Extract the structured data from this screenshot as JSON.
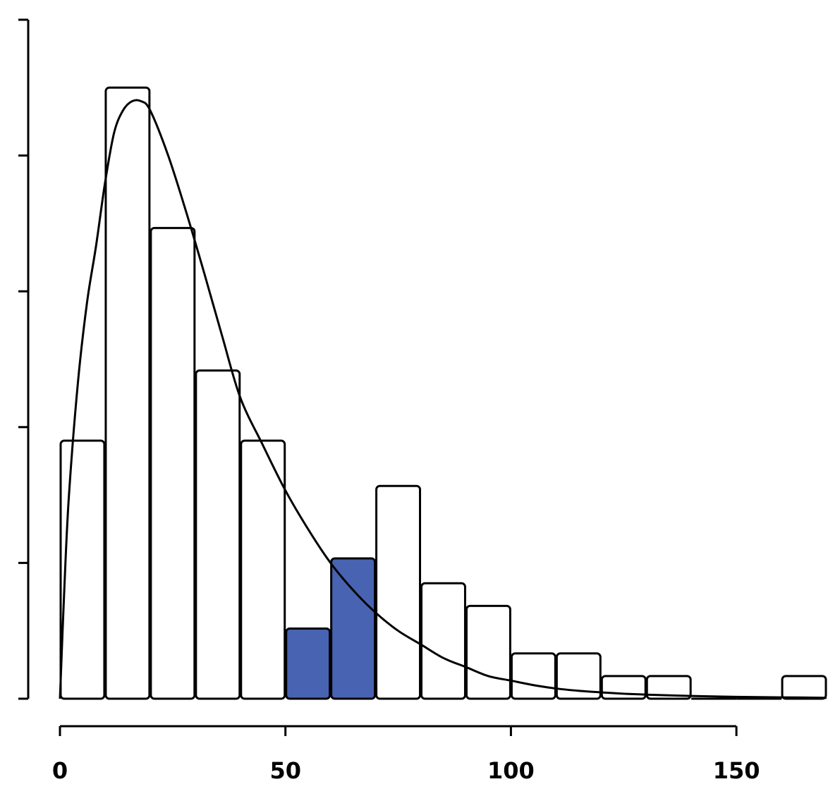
{
  "chart_data": {
    "type": "bar",
    "bin_width": 10,
    "bins": [
      {
        "x0": 0,
        "x1": 10,
        "value": 114,
        "highlighted": false
      },
      {
        "x0": 10,
        "x1": 20,
        "value": 270,
        "highlighted": false
      },
      {
        "x0": 20,
        "x1": 30,
        "value": 208,
        "highlighted": false
      },
      {
        "x0": 30,
        "x1": 40,
        "value": 145,
        "highlighted": false
      },
      {
        "x0": 40,
        "x1": 50,
        "value": 114,
        "highlighted": false
      },
      {
        "x0": 50,
        "x1": 60,
        "value": 31,
        "highlighted": true
      },
      {
        "x0": 60,
        "x1": 70,
        "value": 62,
        "highlighted": true
      },
      {
        "x0": 70,
        "x1": 80,
        "value": 94,
        "highlighted": false
      },
      {
        "x0": 80,
        "x1": 90,
        "value": 51,
        "highlighted": false
      },
      {
        "x0": 90,
        "x1": 100,
        "value": 41,
        "highlighted": false
      },
      {
        "x0": 100,
        "x1": 110,
        "value": 20,
        "highlighted": false
      },
      {
        "x0": 110,
        "x1": 120,
        "value": 20,
        "highlighted": false
      },
      {
        "x0": 120,
        "x1": 130,
        "value": 10,
        "highlighted": false
      },
      {
        "x0": 130,
        "x1": 140,
        "value": 10,
        "highlighted": false
      },
      {
        "x0": 140,
        "x1": 150,
        "value": 0,
        "highlighted": false
      },
      {
        "x0": 150,
        "x1": 160,
        "value": 0,
        "highlighted": false
      },
      {
        "x0": 160,
        "x1": 170,
        "value": 10,
        "highlighted": false
      }
    ],
    "density_curve": {
      "x": [
        0,
        1,
        2,
        4,
        6,
        8,
        10,
        12,
        14,
        16,
        18,
        20,
        24,
        28,
        32,
        36,
        40,
        45,
        50,
        55,
        60,
        65,
        70,
        75,
        80,
        85,
        90,
        95,
        100,
        105,
        110,
        115,
        120,
        125,
        130,
        140,
        150,
        160,
        170
      ],
      "y": [
        0,
        50,
        90,
        140,
        175,
        200,
        228,
        250,
        260,
        264,
        264,
        260,
        240,
        215,
        188,
        160,
        133,
        112,
        92,
        75,
        60,
        48,
        38,
        30,
        24,
        18,
        14,
        10,
        8,
        6,
        4.5,
        3.5,
        2.8,
        2.2,
        1.8,
        1.2,
        0.8,
        0.6,
        0.4
      ]
    },
    "x_ticks": [
      0,
      50,
      100,
      150
    ],
    "x_tick_labels": [
      "0",
      "50",
      "100",
      "150"
    ],
    "y_ticks": [
      0,
      60,
      120,
      180,
      240,
      300
    ],
    "xlim": [
      0,
      170
    ],
    "ylim": [
      0,
      300
    ],
    "title": "",
    "xlabel": "",
    "ylabel": "",
    "colors": {
      "highlight": "#4763b2",
      "bar_fill": "#ffffff",
      "stroke": "#000000"
    }
  }
}
